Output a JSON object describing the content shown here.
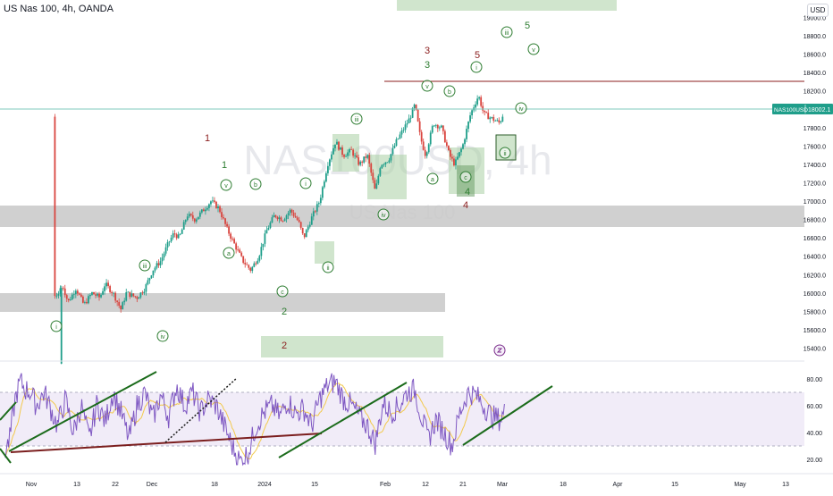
{
  "header": {
    "symbol": "US Nas 100",
    "timeframe": "4h",
    "broker": "OANDA",
    "currency_button": "USD"
  },
  "watermark": {
    "ticker": "NAS100USD, 4h",
    "name": "US Nas 100"
  },
  "price_badge": {
    "symbol": "NAS100USD",
    "price": "18002.1"
  },
  "colors": {
    "candle_up": "#1f9e8a",
    "candle_down": "#d9453f",
    "zone_gray": "#c8c8c8",
    "zone_green": "#a9cfa4",
    "wave_green": "#2e7d32",
    "wave_red": "#8b1e1e",
    "trendline_green": "#1b6b1b",
    "trendline_red": "#7b1e1e",
    "rsi_line": "#7e57c2",
    "rsi_ma": "#f2c94c",
    "rsi_band": "#ede7f6"
  },
  "chart_data": [
    {
      "type": "candlestick",
      "title": "US Nas 100, 4h, OANDA",
      "x_ticks": [
        "Nov",
        "13",
        "22",
        "Dec",
        "18",
        "2024",
        "15",
        "Feb",
        "12",
        "21",
        "Mar",
        "18",
        "Apr",
        "15",
        "May",
        "13"
      ],
      "y_ticks": [
        15400.0,
        15600.0,
        15800.0,
        16000.0,
        16200.0,
        16400.0,
        16600.0,
        16800.0,
        17000.0,
        17200.0,
        17400.0,
        17600.0,
        17800.0,
        18200.0,
        18400.0,
        18600.0,
        18800.0,
        19000.0
      ],
      "ylim": [
        15230,
        19100
      ],
      "last_price": 18002.1,
      "price_path": [
        [
          0,
          15230
        ],
        [
          0.05,
          15300
        ],
        [
          0.07,
          15500
        ],
        [
          0.1,
          15650
        ],
        [
          0.12,
          15800
        ],
        [
          0.15,
          15900
        ],
        [
          0.17,
          16000
        ],
        [
          0.2,
          15980
        ],
        [
          0.22,
          16080
        ],
        [
          0.24,
          15900
        ],
        [
          0.27,
          16050
        ],
        [
          0.3,
          15870
        ],
        [
          0.33,
          16000
        ],
        [
          0.36,
          15950
        ],
        [
          0.38,
          16100
        ],
        [
          0.41,
          16000
        ],
        [
          0.44,
          15820
        ],
        [
          0.46,
          16000
        ],
        [
          0.5,
          15950
        ],
        [
          0.53,
          16050
        ],
        [
          0.56,
          16250
        ],
        [
          0.59,
          16350
        ],
        [
          0.62,
          16550
        ],
        [
          0.64,
          16650
        ],
        [
          0.66,
          16600
        ],
        [
          0.69,
          16850
        ],
        [
          0.72,
          16800
        ],
        [
          0.75,
          16900
        ],
        [
          0.78,
          17000
        ],
        [
          0.81,
          16920
        ],
        [
          0.84,
          16700
        ],
        [
          0.87,
          16520
        ],
        [
          0.9,
          16350
        ],
        [
          0.93,
          16250
        ],
        [
          0.96,
          16400
        ],
        [
          0.99,
          16680
        ],
        [
          1.02,
          16850
        ],
        [
          1.05,
          16800
        ],
        [
          1.08,
          16900
        ],
        [
          1.11,
          16780
        ],
        [
          1.13,
          16600
        ],
        [
          1.16,
          16820
        ],
        [
          1.19,
          17000
        ],
        [
          1.22,
          17400
        ],
        [
          1.25,
          17650
        ],
        [
          1.28,
          17500
        ],
        [
          1.31,
          17550
        ],
        [
          1.34,
          17400
        ],
        [
          1.37,
          17500
        ],
        [
          1.4,
          17100
        ],
        [
          1.42,
          17400
        ],
        [
          1.45,
          17450
        ],
        [
          1.48,
          17650
        ],
        [
          1.5,
          17750
        ],
        [
          1.53,
          17900
        ],
        [
          1.55,
          18050
        ],
        [
          1.57,
          17700
        ],
        [
          1.59,
          17500
        ],
        [
          1.62,
          17850
        ],
        [
          1.65,
          17800
        ],
        [
          1.68,
          17500
        ],
        [
          1.7,
          17400
        ],
        [
          1.73,
          17600
        ],
        [
          1.76,
          17950
        ],
        [
          1.79,
          18150
        ],
        [
          1.81,
          17950
        ],
        [
          1.84,
          17900
        ],
        [
          1.87,
          17850
        ],
        [
          1.89,
          18002
        ]
      ]
    },
    {
      "type": "line",
      "title": "RSI",
      "y_ticks": [
        20.0,
        40.0,
        60.0,
        80.0
      ],
      "ylim": [
        15,
        88
      ],
      "band": [
        30,
        70
      ],
      "rsi_path": [
        [
          0,
          25
        ],
        [
          0.02,
          35
        ],
        [
          0.04,
          65
        ],
        [
          0.06,
          78
        ],
        [
          0.08,
          72
        ],
        [
          0.1,
          70
        ],
        [
          0.12,
          60
        ],
        [
          0.15,
          70
        ],
        [
          0.18,
          55
        ],
        [
          0.2,
          45
        ],
        [
          0.23,
          65
        ],
        [
          0.26,
          40
        ],
        [
          0.29,
          60
        ],
        [
          0.32,
          35
        ],
        [
          0.35,
          62
        ],
        [
          0.38,
          48
        ],
        [
          0.41,
          70
        ],
        [
          0.44,
          55
        ],
        [
          0.47,
          35
        ],
        [
          0.5,
          60
        ],
        [
          0.53,
          70
        ],
        [
          0.56,
          50
        ],
        [
          0.59,
          68
        ],
        [
          0.62,
          52
        ],
        [
          0.65,
          75
        ],
        [
          0.68,
          60
        ],
        [
          0.71,
          70
        ],
        [
          0.74,
          55
        ],
        [
          0.77,
          65
        ],
        [
          0.8,
          60
        ],
        [
          0.83,
          45
        ],
        [
          0.86,
          30
        ],
        [
          0.89,
          18
        ],
        [
          0.92,
          25
        ],
        [
          0.95,
          45
        ],
        [
          0.98,
          55
        ],
        [
          1.01,
          60
        ],
        [
          1.04,
          52
        ],
        [
          1.07,
          64
        ],
        [
          1.1,
          54
        ],
        [
          1.13,
          58
        ],
        [
          1.16,
          45
        ],
        [
          1.19,
          65
        ],
        [
          1.22,
          75
        ],
        [
          1.25,
          78
        ],
        [
          1.28,
          65
        ],
        [
          1.31,
          60
        ],
        [
          1.34,
          52
        ],
        [
          1.37,
          45
        ],
        [
          1.4,
          32
        ],
        [
          1.43,
          62
        ],
        [
          1.46,
          55
        ],
        [
          1.49,
          60
        ],
        [
          1.52,
          70
        ],
        [
          1.55,
          72
        ],
        [
          1.57,
          55
        ],
        [
          1.6,
          35
        ],
        [
          1.63,
          50
        ],
        [
          1.66,
          40
        ],
        [
          1.69,
          30
        ],
        [
          1.72,
          55
        ],
        [
          1.75,
          70
        ],
        [
          1.78,
          68
        ],
        [
          1.81,
          60
        ],
        [
          1.84,
          52
        ],
        [
          1.87,
          50
        ],
        [
          1.89,
          55
        ]
      ]
    }
  ],
  "annotations": {
    "wave_labels": [
      {
        "text": "1",
        "kind": "red"
      },
      {
        "text": "1",
        "kind": "green"
      },
      {
        "text": "2",
        "kind": "green"
      },
      {
        "text": "2",
        "kind": "red"
      },
      {
        "text": "3",
        "kind": "red"
      },
      {
        "text": "3",
        "kind": "green"
      },
      {
        "text": "4",
        "kind": "green"
      },
      {
        "text": "4",
        "kind": "red"
      },
      {
        "text": "5",
        "kind": "red"
      },
      {
        "text": "5",
        "kind": "green"
      }
    ],
    "circle_labels": [
      "i",
      "iii",
      "iv",
      "a",
      "v",
      "b",
      "c",
      "i",
      "ii",
      "iii",
      "iv",
      "v",
      "a",
      "b",
      "c",
      "ii",
      "i",
      "iii",
      "iv",
      "v"
    ]
  }
}
